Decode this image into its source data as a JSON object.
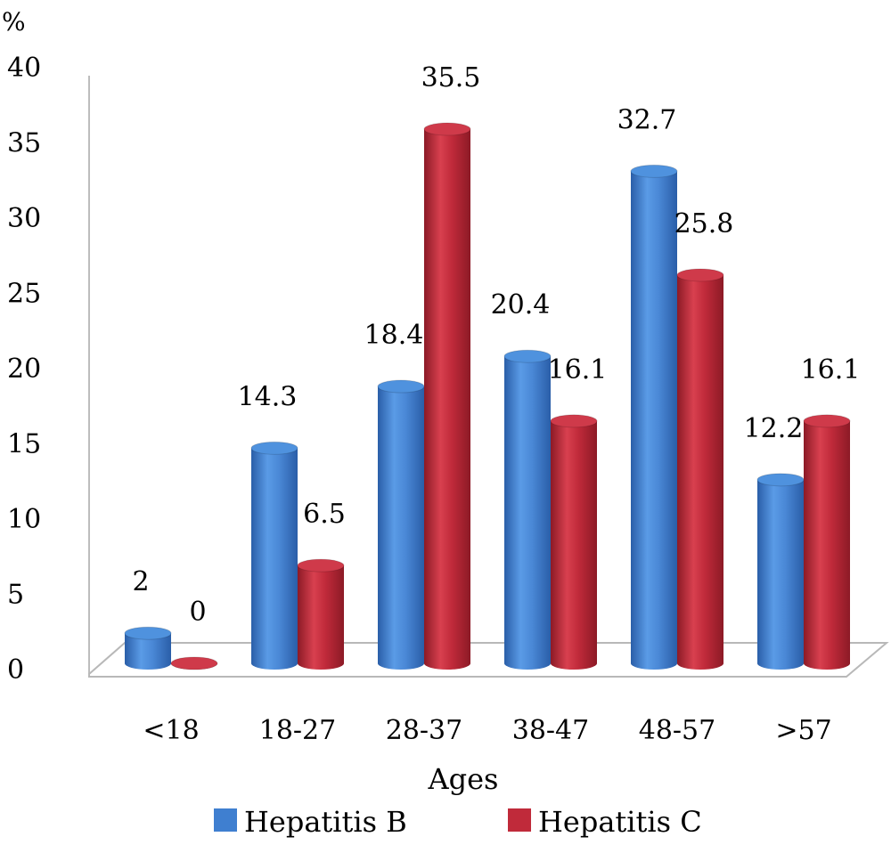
{
  "chart_data": {
    "type": "bar",
    "title": "",
    "unit_label": "%",
    "xlabel": "Ages",
    "ylabel": "",
    "ylim": [
      0,
      40
    ],
    "yticks": [
      0,
      5,
      10,
      15,
      20,
      25,
      30,
      35,
      40
    ],
    "categories": [
      "<18",
      "18-27",
      "28-37",
      "38-47",
      "48-57",
      ">57"
    ],
    "series": [
      {
        "name": "Hepatitis B",
        "color": "#3f7fd0",
        "values": [
          2,
          14.3,
          18.4,
          20.4,
          32.7,
          12.2
        ]
      },
      {
        "name": "Hepatitis C",
        "color": "#c02a3a",
        "values": [
          0,
          6.5,
          35.5,
          16.1,
          25.8,
          16.1
        ]
      }
    ],
    "legend_position": "bottom",
    "grid": false,
    "style": "3d-cylinder"
  }
}
